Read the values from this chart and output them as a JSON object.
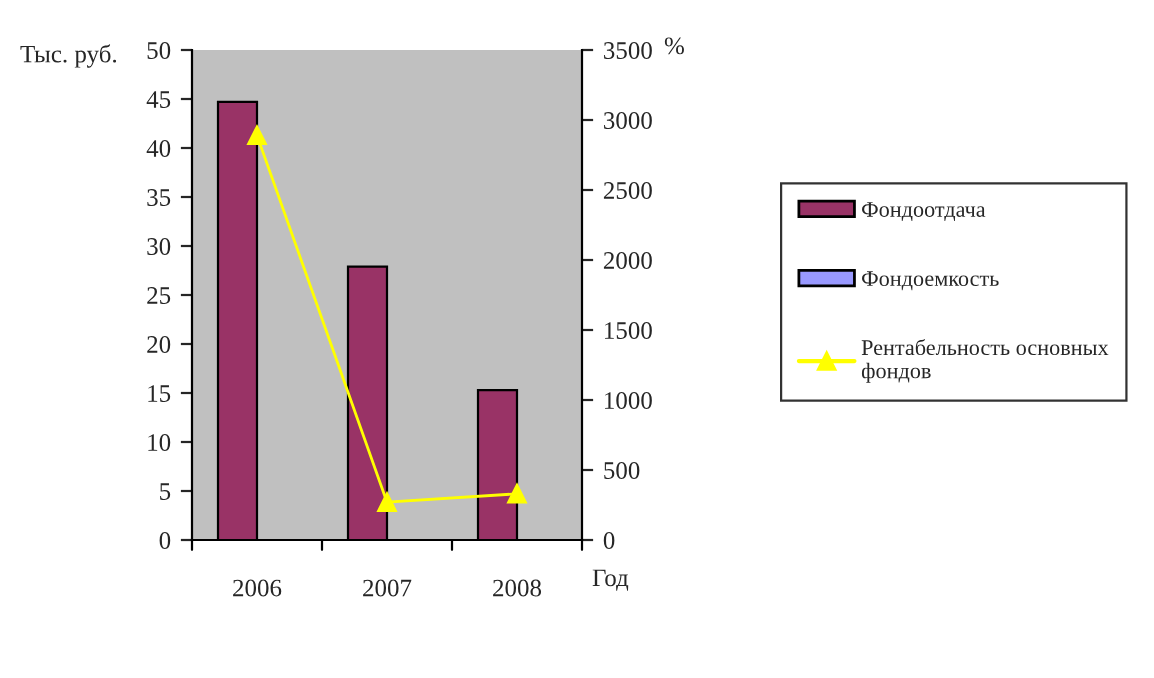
{
  "chart_data": {
    "type": "bar",
    "categories": [
      "2006",
      "2007",
      "2008"
    ],
    "series": [
      {
        "name": "Фондоотдача",
        "color": "#993366",
        "values": [
          44.7,
          27.9,
          15.3
        ]
      },
      {
        "name": "Фондоемкость",
        "color": "#9999ff",
        "values": [
          null,
          null,
          null
        ]
      },
      {
        "name": "Рентабельность основных фондов",
        "type": "line",
        "axis": "y2",
        "color": "#ffff00",
        "marker": "triangle",
        "values": [
          2890,
          270,
          330
        ]
      }
    ],
    "ylabel": "Тыс. руб.",
    "y2label": "%",
    "xlabel": "Год",
    "ylim": [
      0,
      50
    ],
    "yticks": [
      0,
      5,
      10,
      15,
      20,
      25,
      30,
      35,
      40,
      45,
      50
    ],
    "y2lim": [
      0,
      3500
    ],
    "y2ticks": [
      0,
      500,
      1000,
      1500,
      2000,
      2500,
      3000,
      3500
    ],
    "grid": false,
    "legend": "right"
  }
}
